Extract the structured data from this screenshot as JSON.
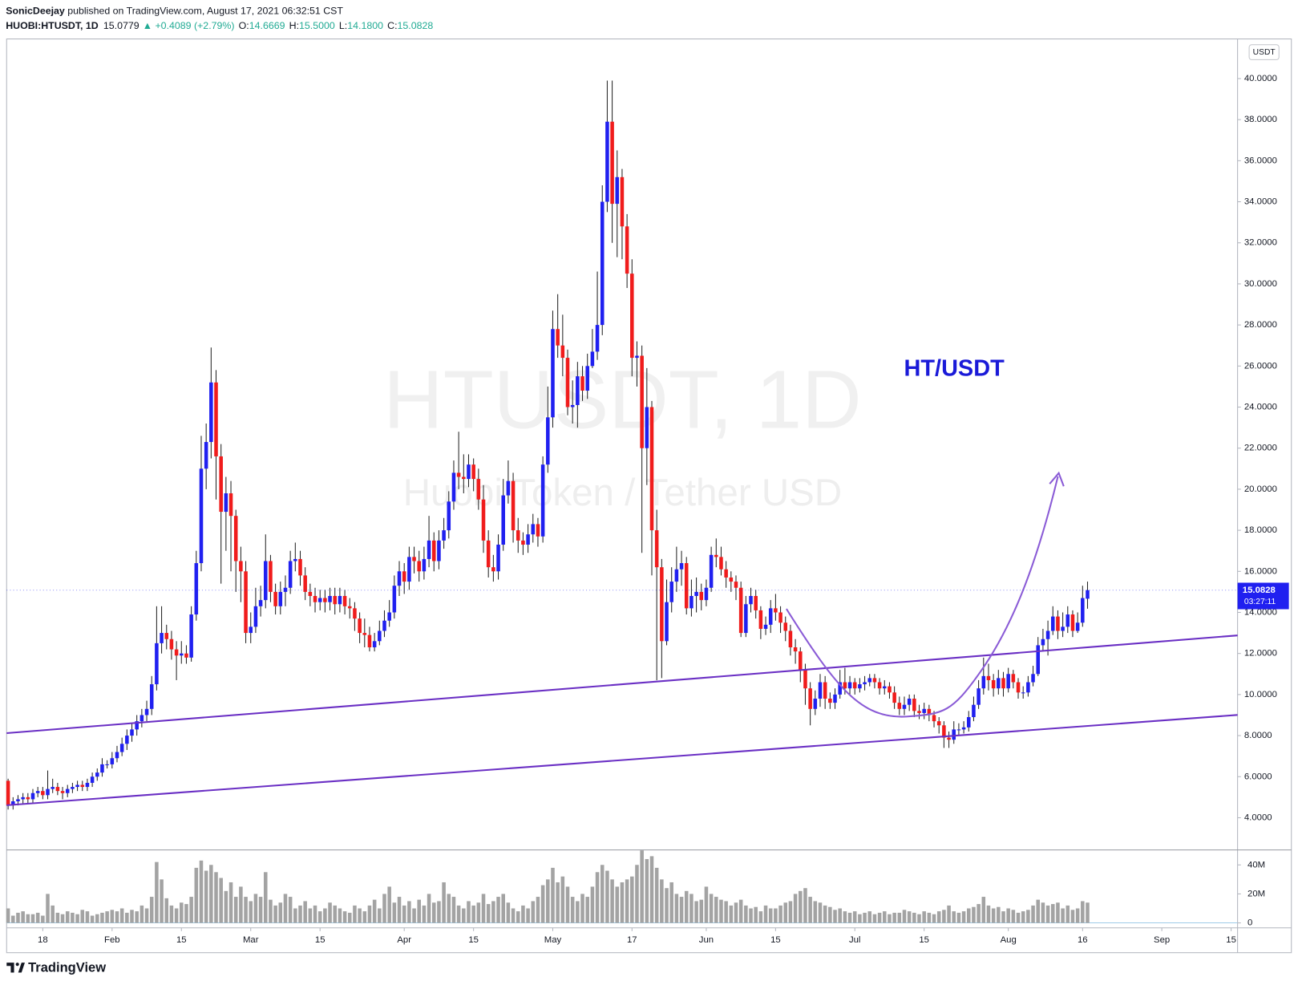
{
  "header": {
    "author": "SonicDeejay",
    "published": " published on TradingView.com, August 17, 2021 06:32:51 CST",
    "symbol": "HUOBI:HTUSDT, 1D",
    "last": "15.0779",
    "change": "▲ +0.4089 (+2.79%)",
    "ohlc": [
      {
        "label": "O:",
        "value": "14.6669"
      },
      {
        "label": "H:",
        "value": "15.5000"
      },
      {
        "label": "L:",
        "value": "14.1800"
      },
      {
        "label": "C:",
        "value": "15.0828"
      }
    ]
  },
  "branding": "TradingView",
  "chart_data": {
    "type": "candlestick",
    "title": "HTUSDT, 1D",
    "subtitle": "Huobi Token / Tether USD",
    "annotation": "HT/USDT",
    "currency": "USDT",
    "countdown": "03:27:11",
    "up_color": "#2020f0",
    "down_color": "#f01c1c",
    "wick_color": "#222222",
    "xlim": [
      -0.3,
      248.3
    ],
    "xticks": [
      {
        "value": 7,
        "label": "18"
      },
      {
        "value": 21,
        "label": "Feb"
      },
      {
        "value": 35,
        "label": "15"
      },
      {
        "value": 49,
        "label": "Mar"
      },
      {
        "value": 63,
        "label": "15"
      },
      {
        "value": 80,
        "label": "Apr"
      },
      {
        "value": 94,
        "label": "15"
      },
      {
        "value": 110,
        "label": "May"
      },
      {
        "value": 126,
        "label": "17"
      },
      {
        "value": 141,
        "label": "Jun"
      },
      {
        "value": 155,
        "label": "15"
      },
      {
        "value": 171,
        "label": "Jul"
      },
      {
        "value": 185,
        "label": "15"
      },
      {
        "value": 202,
        "label": "Aug"
      },
      {
        "value": 217,
        "label": "16"
      },
      {
        "value": 233,
        "label": "Sep"
      },
      {
        "value": 247,
        "label": "15"
      }
    ],
    "ylim": [
      2.43,
      41.93
    ],
    "yticks": [
      {
        "value": 4,
        "label": "4.0000"
      },
      {
        "value": 6,
        "label": "6.0000"
      },
      {
        "value": 8,
        "label": "8.0000"
      },
      {
        "value": 10,
        "label": "10.0000"
      },
      {
        "value": 12,
        "label": "12.0000"
      },
      {
        "value": 14,
        "label": "14.0000"
      },
      {
        "value": 16,
        "label": "16.0000"
      },
      {
        "value": 18,
        "label": "18.0000"
      },
      {
        "value": 20,
        "label": "20.0000"
      },
      {
        "value": 22,
        "label": "22.0000"
      },
      {
        "value": 24,
        "label": "24.0000"
      },
      {
        "value": 26,
        "label": "26.0000"
      },
      {
        "value": 28,
        "label": "28.0000"
      },
      {
        "value": 30,
        "label": "30.0000"
      },
      {
        "value": 32,
        "label": "32.0000"
      },
      {
        "value": 34,
        "label": "34.0000"
      },
      {
        "value": 36,
        "label": "36.0000"
      },
      {
        "value": 38,
        "label": "38.0000"
      },
      {
        "value": 40,
        "label": "40.0000"
      }
    ],
    "open": [
      5.8,
      4.6,
      4.8,
      4.9,
      5.0,
      4.9,
      5.2,
      5.3,
      5.1,
      5.4,
      5.5,
      5.3,
      5.2,
      5.4,
      5.5,
      5.6,
      5.5,
      5.7,
      6.0,
      6.2,
      6.6,
      6.6,
      6.9,
      7.2,
      7.6,
      8.0,
      8.3,
      8.7,
      9.0,
      9.3,
      10.5,
      12.5,
      13.0,
      12.7,
      12.2,
      11.9,
      12.0,
      11.8,
      13.9,
      16.4,
      21.0,
      22.3,
      25.2,
      21.6,
      18.9,
      19.8,
      18.7,
      16.5,
      16.0,
      13.0,
      13.3,
      14.3,
      14.6,
      16.5,
      15.0,
      14.3,
      15.0,
      15.2,
      16.5,
      16.6,
      15.8,
      15.0,
      14.8,
      14.5,
      14.7,
      14.5,
      14.8,
      14.4,
      14.8,
      14.3,
      14.2,
      13.7,
      13.0,
      12.9,
      12.3,
      12.6,
      13.1,
      13.6,
      14.0,
      15.3,
      16.0,
      15.5,
      16.7,
      16.5,
      16.0,
      16.6,
      17.5,
      16.5,
      17.5,
      18.0,
      19.4,
      20.8,
      20.6,
      20.5,
      21.2,
      20.5,
      19.5,
      17.5,
      16.2,
      16.0,
      17.3,
      19.7,
      20.4,
      18.0,
      17.5,
      17.3,
      17.8,
      18.3,
      17.7,
      21.2,
      23.5,
      27.8,
      27.0,
      26.4,
      24.0,
      24.1,
      25.5,
      24.8,
      26.0,
      26.7,
      28.0,
      34.0,
      37.9,
      33.9,
      35.2,
      32.8,
      30.5,
      26.4,
      26.5,
      22.0,
      24.0,
      18.0,
      16.2,
      12.6,
      14.5,
      15.5,
      16.1,
      16.4,
      14.2,
      14.8,
      15.0,
      14.6,
      15.2,
      16.8,
      16.7,
      16.1,
      15.7,
      15.5,
      15.2,
      13.0,
      14.4,
      14.8,
      14.1,
      13.2,
      13.4,
      14.2,
      14.0,
      13.5,
      13.1,
      12.3,
      12.1,
      11.2,
      10.3,
      9.3,
      9.8,
      10.6,
      9.8,
      9.6,
      10.0,
      10.6,
      10.3,
      10.6,
      10.3,
      10.5,
      10.6,
      10.8,
      10.6,
      10.3,
      10.4,
      10.1,
      9.6,
      9.3,
      9.5,
      9.8,
      9.2,
      9.1,
      9.3,
      9.0,
      8.7,
      8.5,
      7.9,
      7.8,
      8.3,
      8.3,
      8.4,
      8.9,
      9.5,
      10.3,
      10.9,
      10.7,
      10.3,
      10.8,
      10.3,
      11.0,
      10.6,
      10.1,
      10.1,
      10.6,
      11.0,
      12.4,
      12.7,
      13.1,
      13.8,
      13.1,
      13.3,
      13.9,
      13.1,
      13.5,
      14.6669
    ],
    "high": [
      5.9,
      5.0,
      5.1,
      5.2,
      5.2,
      5.4,
      5.5,
      5.5,
      6.3,
      5.9,
      5.7,
      5.5,
      5.6,
      5.7,
      5.8,
      5.8,
      5.9,
      6.2,
      6.4,
      6.9,
      6.8,
      7.2,
      7.5,
      7.9,
      8.3,
      8.6,
      9.0,
      9.3,
      9.7,
      10.9,
      14.3,
      14.3,
      13.4,
      13.1,
      12.6,
      12.6,
      12.4,
      14.3,
      17.0,
      22.6,
      23.2,
      26.9,
      25.8,
      22.2,
      20.6,
      20.4,
      19.0,
      17.2,
      16.5,
      14.0,
      15.2,
      15.3,
      17.8,
      16.8,
      15.4,
      15.5,
      15.8,
      17.0,
      17.4,
      17.0,
      16.2,
      15.4,
      15.2,
      15.1,
      15.1,
      15.2,
      15.2,
      15.2,
      15.1,
      14.7,
      14.5,
      14.0,
      13.7,
      13.3,
      13.0,
      13.6,
      14.1,
      14.6,
      15.8,
      16.5,
      16.4,
      17.2,
      17.2,
      17.0,
      17.2,
      18.7,
      17.9,
      18.0,
      18.6,
      19.9,
      21.4,
      22.8,
      21.7,
      21.7,
      21.5,
      21.0,
      20.2,
      18.0,
      16.8,
      17.8,
      20.5,
      21.4,
      20.8,
      18.6,
      17.9,
      18.3,
      18.8,
      18.6,
      21.6,
      25.0,
      28.7,
      29.5,
      28.5,
      26.8,
      25.3,
      26.2,
      26.0,
      26.6,
      27.8,
      30.6,
      34.8,
      39.9,
      39.9,
      36.5,
      35.6,
      33.4,
      31.2,
      27.2,
      27.0,
      25.9,
      24.3,
      19.0,
      16.6,
      15.6,
      16.2,
      17.2,
      17.0,
      16.7,
      15.6,
      15.7,
      15.4,
      15.6,
      17.2,
      17.6,
      17.2,
      16.5,
      16.0,
      15.8,
      15.5,
      14.8,
      15.2,
      15.1,
      14.3,
      13.8,
      14.6,
      14.9,
      14.3,
      13.8,
      13.4,
      12.7,
      12.3,
      11.5,
      10.6,
      10.2,
      11.0,
      10.9,
      10.1,
      10.3,
      11.2,
      11.3,
      10.9,
      10.8,
      10.8,
      10.9,
      11.0,
      11.0,
      10.8,
      10.7,
      10.6,
      10.4,
      9.9,
      9.9,
      10.0,
      10.0,
      9.5,
      9.6,
      9.5,
      9.2,
      8.9,
      8.7,
      8.2,
      8.7,
      8.6,
      8.7,
      9.2,
      9.9,
      10.7,
      11.8,
      11.5,
      11.0,
      11.2,
      11.1,
      11.3,
      11.2,
      10.8,
      10.4,
      10.9,
      11.4,
      12.8,
      13.2,
      13.6,
      14.3,
      14.1,
      14.0,
      14.3,
      14.1,
      14.0,
      15.3,
      15.5
    ],
    "low": [
      4.4,
      4.4,
      4.6,
      4.7,
      4.7,
      4.7,
      5.0,
      4.9,
      4.9,
      5.2,
      5.1,
      4.9,
      5.0,
      5.2,
      5.3,
      5.3,
      5.3,
      5.5,
      5.8,
      6.0,
      6.4,
      6.4,
      6.7,
      7.0,
      7.3,
      7.7,
      8.0,
      8.4,
      8.7,
      9.0,
      10.2,
      12.0,
      12.2,
      11.7,
      10.7,
      11.5,
      11.5,
      11.6,
      13.6,
      16.0,
      20.0,
      21.5,
      19.5,
      15.4,
      17.0,
      16.0,
      15.0,
      14.5,
      12.5,
      12.5,
      13.0,
      13.8,
      14.2,
      14.5,
      13.9,
      13.9,
      14.3,
      14.9,
      16.0,
      15.3,
      14.6,
      14.3,
      14.0,
      14.1,
      14.0,
      14.1,
      13.9,
      14.0,
      13.9,
      13.7,
      13.1,
      12.5,
      12.3,
      12.1,
      12.1,
      12.4,
      12.8,
      13.3,
      13.7,
      14.8,
      14.9,
      15.1,
      15.9,
      15.5,
      15.6,
      16.2,
      16.0,
      16.1,
      17.1,
      17.6,
      19.0,
      20.0,
      19.8,
      20.1,
      19.9,
      19.0,
      16.9,
      15.7,
      15.5,
      15.6,
      17.0,
      19.3,
      17.4,
      16.9,
      16.8,
      16.9,
      17.4,
      17.2,
      17.4,
      20.8,
      23.0,
      26.4,
      25.5,
      23.6,
      23.2,
      23.0,
      24.3,
      24.4,
      25.9,
      26.3,
      27.5,
      33.5,
      32.0,
      31.3,
      31.2,
      29.8,
      25.5,
      25.0,
      16.9,
      20.2,
      15.8,
      10.7,
      10.8,
      12.4,
      14.0,
      15.0,
      15.3,
      13.9,
      13.8,
      14.0,
      14.1,
      14.3,
      15.0,
      16.2,
      15.8,
      15.2,
      15.0,
      14.6,
      12.8,
      12.8,
      14.0,
      13.7,
      12.7,
      12.9,
      13.0,
      13.6,
      13.0,
      12.6,
      11.9,
      11.5,
      10.6,
      9.5,
      8.5,
      9.0,
      9.4,
      9.3,
      9.3,
      9.3,
      9.8,
      10.0,
      10.0,
      10.0,
      10.1,
      10.2,
      10.4,
      10.3,
      10.0,
      10.0,
      9.8,
      9.3,
      9.0,
      9.0,
      9.2,
      8.9,
      8.8,
      8.8,
      8.7,
      8.4,
      8.1,
      7.4,
      7.4,
      7.6,
      8.0,
      8.1,
      8.2,
      8.7,
      9.3,
      10.0,
      10.2,
      9.9,
      10.0,
      9.9,
      10.1,
      10.3,
      9.8,
      9.8,
      9.9,
      10.4,
      10.9,
      12.1,
      11.9,
      12.9,
      12.7,
      12.8,
      13.0,
      12.8,
      13.0,
      13.3,
      14.18
    ],
    "close": [
      4.6,
      4.8,
      4.9,
      5.0,
      4.9,
      5.2,
      5.3,
      5.1,
      5.4,
      5.5,
      5.3,
      5.2,
      5.4,
      5.5,
      5.6,
      5.5,
      5.7,
      6.0,
      6.2,
      6.6,
      6.6,
      6.9,
      7.2,
      7.6,
      8.0,
      8.3,
      8.7,
      9.0,
      9.3,
      10.5,
      12.5,
      13.0,
      12.7,
      12.2,
      11.9,
      12.0,
      11.8,
      13.9,
      16.4,
      21.0,
      22.3,
      25.2,
      21.6,
      18.9,
      19.8,
      18.7,
      16.5,
      16.0,
      13.0,
      13.3,
      14.3,
      14.6,
      16.5,
      15.0,
      14.3,
      15.0,
      15.2,
      16.5,
      16.6,
      15.8,
      15.0,
      14.8,
      14.5,
      14.7,
      14.5,
      14.8,
      14.4,
      14.8,
      14.3,
      14.2,
      13.7,
      13.0,
      12.9,
      12.3,
      12.6,
      13.1,
      13.6,
      14.0,
      15.3,
      16.0,
      15.5,
      16.7,
      16.5,
      16.0,
      16.6,
      17.5,
      16.5,
      17.5,
      18.0,
      19.4,
      20.8,
      20.6,
      20.5,
      21.2,
      20.5,
      19.5,
      17.5,
      16.2,
      16.0,
      17.3,
      19.7,
      20.4,
      18.0,
      17.5,
      17.3,
      17.8,
      18.3,
      17.7,
      21.2,
      23.5,
      27.8,
      27.0,
      26.4,
      24.0,
      24.1,
      25.5,
      24.8,
      26.0,
      26.7,
      28.0,
      34.0,
      37.9,
      33.9,
      35.2,
      32.8,
      30.5,
      26.4,
      26.5,
      22.0,
      24.0,
      18.0,
      16.2,
      12.6,
      14.5,
      15.5,
      16.1,
      16.4,
      14.2,
      14.8,
      15.0,
      14.6,
      15.2,
      16.8,
      16.7,
      16.1,
      15.7,
      15.5,
      15.2,
      13.0,
      14.4,
      14.8,
      14.1,
      13.2,
      13.4,
      14.2,
      14.0,
      13.5,
      13.1,
      12.3,
      12.1,
      11.2,
      10.3,
      9.3,
      9.8,
      10.6,
      9.8,
      9.6,
      10.0,
      10.6,
      10.3,
      10.6,
      10.3,
      10.5,
      10.6,
      10.8,
      10.6,
      10.3,
      10.4,
      10.1,
      9.6,
      9.3,
      9.5,
      9.8,
      9.2,
      9.1,
      9.3,
      9.0,
      8.7,
      8.5,
      7.9,
      7.8,
      8.3,
      8.3,
      8.4,
      8.9,
      9.5,
      10.3,
      10.9,
      10.7,
      10.3,
      10.8,
      10.3,
      11.0,
      10.6,
      10.1,
      10.1,
      10.6,
      11.0,
      12.4,
      12.7,
      13.1,
      13.8,
      13.1,
      13.3,
      13.9,
      13.1,
      13.5,
      14.7,
      15.0828
    ],
    "volume": {
      "color": "#a3a3a3",
      "ylim": [
        -3.4,
        50.3
      ],
      "yticks": [
        {
          "value": 40,
          "label": "40M"
        },
        {
          "value": 20,
          "label": "20M"
        },
        0
      ],
      "values": [
        10,
        5,
        7,
        8,
        6,
        6,
        7,
        5,
        20,
        12,
        7,
        6,
        8,
        7,
        6,
        9,
        8,
        5,
        6,
        7,
        8,
        9,
        8,
        10,
        7,
        9,
        8,
        12,
        10,
        18,
        42,
        30,
        17,
        12,
        10,
        14,
        13,
        18,
        38,
        43,
        36,
        40,
        35,
        31,
        22,
        28,
        18,
        25,
        18,
        15,
        20,
        18,
        35,
        16,
        12,
        14,
        20,
        18,
        10,
        12,
        15,
        10,
        12,
        8,
        10,
        14,
        12,
        10,
        8,
        7,
        12,
        10,
        8,
        12,
        16,
        10,
        20,
        25,
        14,
        18,
        12,
        15,
        10,
        16,
        12,
        20,
        14,
        15,
        28,
        20,
        18,
        12,
        10,
        15,
        12,
        14,
        20,
        13,
        15,
        18,
        20,
        14,
        10,
        8,
        12,
        10,
        15,
        18,
        26,
        30,
        38,
        28,
        32,
        25,
        18,
        15,
        20,
        18,
        25,
        35,
        40,
        36,
        30,
        25,
        28,
        30,
        32,
        40,
        50,
        44,
        46,
        38,
        30,
        24,
        28,
        20,
        18,
        22,
        20,
        15,
        16,
        25,
        20,
        18,
        16,
        15,
        12,
        14,
        16,
        12,
        10,
        11,
        8,
        12,
        10,
        10,
        12,
        14,
        15,
        20,
        22,
        24,
        18,
        15,
        14,
        12,
        11,
        9,
        10,
        8,
        7,
        8,
        6,
        7,
        8,
        6,
        7,
        8,
        6,
        7,
        7,
        9,
        8,
        7,
        6,
        8,
        7,
        6,
        8,
        9,
        12,
        8,
        7,
        8,
        10,
        11,
        13,
        18,
        12,
        10,
        11,
        8,
        10,
        9,
        7,
        8,
        9,
        12,
        16,
        14,
        12,
        13,
        14,
        10,
        12,
        9,
        10,
        15,
        14
      ]
    }
  }
}
